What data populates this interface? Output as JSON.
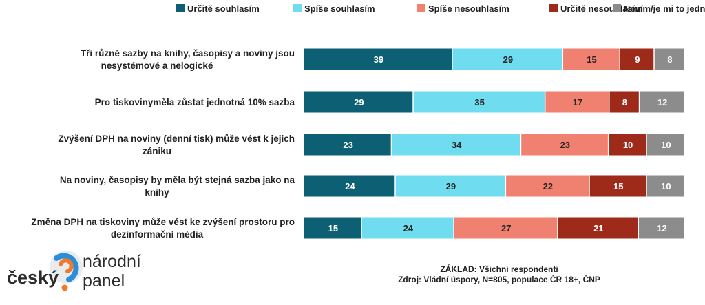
{
  "chart_data": {
    "type": "bar",
    "orientation": "horizontal",
    "stacked": true,
    "legend_position": "top-right",
    "grid": false,
    "xlim": [
      0,
      100
    ],
    "categories": [
      "Tři různé sazby na knihy, časopisy a noviny jsou nesystémové a nelogické",
      "Pro tiskovinyměla zůstat jednotná 10% sazba",
      "Zvýšení DPH na noviny (denní tisk) může vést k jejich zániku",
      "Na noviny, časopisy by měla být stejná sazba jako na knihy",
      "Změna DPH na tiskoviny může vést ke zvýšení prostoru pro dezinformační média"
    ],
    "series": [
      {
        "name": "Určitě souhlasím",
        "color": "#0d5f73",
        "values": [
          39,
          29,
          23,
          24,
          15
        ]
      },
      {
        "name": "Spíše souhlasím",
        "color": "#6fdcf0",
        "values": [
          29,
          35,
          34,
          29,
          24
        ]
      },
      {
        "name": "Spíše nesouhlasím",
        "color": "#f08070",
        "values": [
          15,
          17,
          23,
          22,
          27
        ]
      },
      {
        "name": "Určitě nesouhlasím",
        "color": "#9e2a1a",
        "values": [
          9,
          8,
          10,
          15,
          21
        ]
      },
      {
        "name": "Nevím/je mi to jedno",
        "color": "#8c8c8c",
        "values": [
          8,
          12,
          10,
          10,
          12
        ]
      }
    ]
  },
  "footer": {
    "base": "ZÁKLAD: Všichni respondenti",
    "source": "Zdroj: Vládní úspory, N=805, populace ČR 18+, ČNP"
  },
  "logo": {
    "word_left": "český",
    "word_right_1": "národní",
    "word_right_2": "panel"
  }
}
